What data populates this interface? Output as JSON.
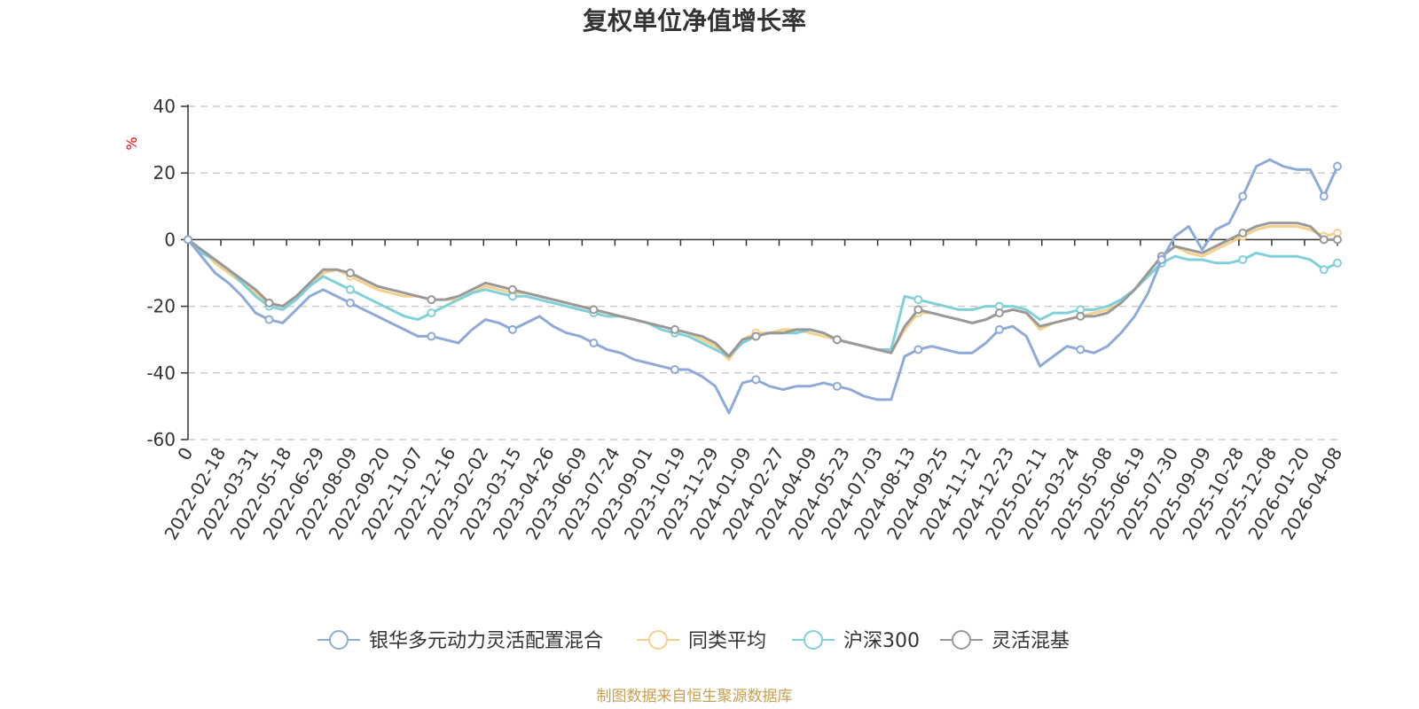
{
  "chart_data": {
    "type": "line",
    "title": "复权单位净值增长率",
    "ylabel": "%",
    "ylim": [
      -60,
      40
    ],
    "yticks": [
      "40",
      "20",
      "0",
      "-20",
      "-40",
      "-60"
    ],
    "grid": true,
    "legend_position": "bottom",
    "x_labels": [
      "0",
      "2022-02-18",
      "2022-03-31",
      "2022-05-18",
      "2022-06-29",
      "2022-08-09",
      "2022-09-20",
      "2022-11-07",
      "2022-12-16",
      "2023-02-02",
      "2023-03-15",
      "2023-04-26",
      "2023-06-09",
      "2023-07-24",
      "2023-09-01",
      "2023-10-19",
      "2023-11-29",
      "2024-01-09",
      "2024-02-27",
      "2024-04-09",
      "2024-05-23",
      "2024-07-03",
      "2024-08-13",
      "2024-09-25",
      "2024-11-12",
      "2024-12-23",
      "2025-02-11",
      "2025-03-24",
      "2025-05-08",
      "2025-06-19",
      "2025-07-30",
      "2025-09-09",
      "2025-10-28",
      "2025-12-08",
      "2026-01-20",
      "2026-04-08"
    ],
    "series": [
      {
        "name": "银华多元动力灵活配置混合",
        "color": "#8eaad8",
        "values": [
          0,
          -5,
          -10,
          -13,
          -17,
          -22,
          -24,
          -25,
          -21,
          -17,
          -15,
          -17,
          -19,
          -21,
          -23,
          -25,
          -27,
          -29,
          -29,
          -30,
          -31,
          -27,
          -24,
          -25,
          -27,
          -25,
          -23,
          -26,
          -28,
          -29,
          -31,
          -33,
          -34,
          -36,
          -37,
          -38,
          -39,
          -39,
          -41,
          -44,
          -52,
          -43,
          -42,
          -44,
          -45,
          -44,
          -44,
          -43,
          -44,
          -45,
          -47,
          -48,
          -48,
          -35,
          -33,
          -32,
          -33,
          -34,
          -34,
          -31,
          -27,
          -26,
          -29,
          -38,
          -35,
          -32,
          -33,
          -34,
          -32,
          -28,
          -23,
          -16,
          -6,
          1,
          4,
          -3,
          3,
          5,
          13,
          22,
          24,
          22,
          21,
          21,
          13,
          22
        ]
      },
      {
        "name": "同类平均",
        "color": "#f5d08a",
        "values": [
          0,
          -3,
          -7,
          -10,
          -13,
          -16,
          -19,
          -20,
          -17,
          -13,
          -10,
          -9,
          -11,
          -13,
          -15,
          -16,
          -17,
          -17,
          -18,
          -18,
          -18,
          -16,
          -14,
          -15,
          -16,
          -16,
          -17,
          -18,
          -19,
          -20,
          -21,
          -22,
          -23,
          -24,
          -25,
          -26,
          -27,
          -28,
          -30,
          -32,
          -36,
          -30,
          -28,
          -28,
          -27,
          -27,
          -28,
          -29,
          -30,
          -31,
          -32,
          -33,
          -34,
          -27,
          -22,
          -22,
          -23,
          -24,
          -25,
          -24,
          -22,
          -21,
          -22,
          -27,
          -25,
          -24,
          -23,
          -22,
          -21,
          -19,
          -15,
          -10,
          -5,
          -2,
          -4,
          -5,
          -3,
          -1,
          1,
          3,
          4,
          4,
          4,
          3,
          1,
          2
        ]
      },
      {
        "name": "沪深300",
        "color": "#7fd0d8",
        "values": [
          0,
          -4,
          -6,
          -9,
          -13,
          -17,
          -20,
          -21,
          -18,
          -14,
          -11,
          -13,
          -15,
          -17,
          -19,
          -21,
          -23,
          -24,
          -22,
          -20,
          -18,
          -16,
          -15,
          -16,
          -17,
          -17,
          -18,
          -19,
          -20,
          -21,
          -22,
          -23,
          -23,
          -24,
          -25,
          -27,
          -28,
          -29,
          -31,
          -33,
          -35,
          -31,
          -29,
          -28,
          -28,
          -28,
          -27,
          -28,
          -30,
          -31,
          -32,
          -33,
          -33,
          -17,
          -18,
          -19,
          -20,
          -21,
          -21,
          -20,
          -20,
          -20,
          -21,
          -24,
          -22,
          -22,
          -21,
          -21,
          -20,
          -18,
          -15,
          -11,
          -7,
          -5,
          -6,
          -6,
          -7,
          -7,
          -6,
          -4,
          -5,
          -5,
          -5,
          -6,
          -9,
          -7
        ]
      },
      {
        "name": "灵活混基",
        "color": "#999999",
        "values": [
          0,
          -3,
          -6,
          -9,
          -12,
          -15,
          -19,
          -20,
          -17,
          -13,
          -9,
          -9,
          -10,
          -12,
          -14,
          -15,
          -16,
          -17,
          -18,
          -18,
          -17,
          -15,
          -13,
          -14,
          -15,
          -16,
          -17,
          -18,
          -19,
          -20,
          -21,
          -22,
          -23,
          -24,
          -25,
          -26,
          -27,
          -28,
          -29,
          -31,
          -35,
          -30,
          -29,
          -28,
          -28,
          -27,
          -27,
          -28,
          -30,
          -31,
          -32,
          -33,
          -34,
          -26,
          -21,
          -22,
          -23,
          -24,
          -25,
          -24,
          -22,
          -21,
          -22,
          -26,
          -25,
          -24,
          -23,
          -23,
          -22,
          -19,
          -15,
          -10,
          -5,
          -2,
          -3,
          -4,
          -2,
          0,
          2,
          4,
          5,
          5,
          5,
          4,
          0,
          0
        ]
      }
    ]
  },
  "legend": {
    "items": [
      "银华多元动力灵活配置混合",
      "同类平均",
      "沪深300",
      "灵活混基"
    ]
  },
  "source_note": "制图数据来自恒生聚源数据库"
}
